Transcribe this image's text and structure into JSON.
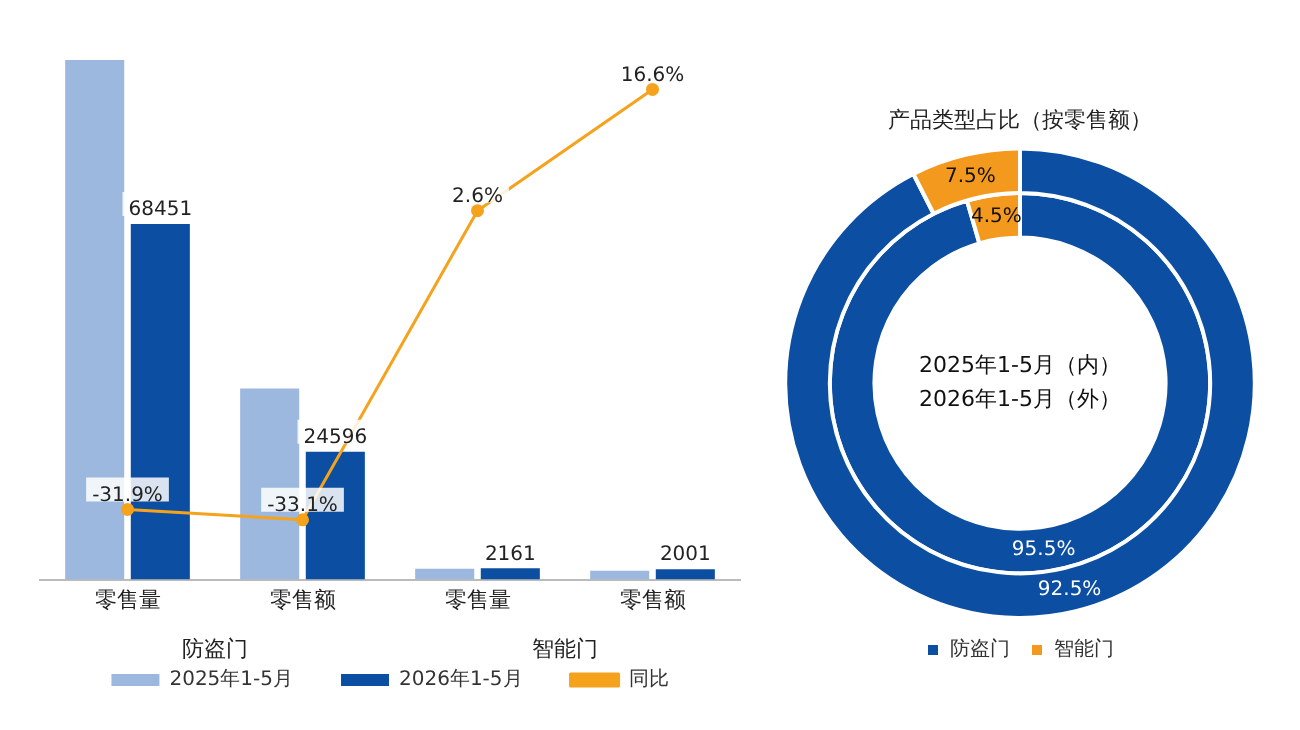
{
  "chart_data": [
    {
      "type": "bar",
      "categories": [
        "零售量",
        "零售额",
        "零售量",
        "零售额"
      ],
      "series": [
        {
          "name": "2025年1-5月",
          "color": "#9db8de",
          "values": [
            100000,
            36800,
            2100,
            1700
          ]
        },
        {
          "name": "2026年1-5月",
          "color": "#0b4ea2",
          "values": [
            68451,
            24596,
            2161,
            2001
          ],
          "value_labels": [
            "68451",
            "24596",
            "2161",
            "2001"
          ]
        },
        {
          "name": "同比",
          "type": "line",
          "axis": "y2",
          "color": "#f5a21c",
          "values": [
            -31.9,
            -33.1,
            2.6,
            16.6
          ],
          "value_labels": [
            "-31.9%",
            "-33.1%",
            "2.6%",
            "16.6%"
          ]
        }
      ],
      "annotations": [
        "防盗门",
        "智能门"
      ],
      "legend": "bottom",
      "marker": "circle",
      "grid": false
    },
    {
      "type": "donut",
      "title": "产品类型占比（按零售额）",
      "categories": [
        "防盗门",
        "智能门"
      ],
      "colors": [
        "#0b4ea2",
        "#f39a1e"
      ],
      "series": [
        {
          "values": [
            95.5,
            4.5
          ],
          "value_labels": [
            "95.5%",
            "4.5%"
          ]
        },
        {
          "values": [
            92.5,
            7.5
          ],
          "value_labels": [
            "92.5%",
            "7.5%"
          ]
        }
      ],
      "annotations": [
        "2025年1-5月（内）",
        "2026年1-5月（外）"
      ],
      "legend": "bottom"
    }
  ]
}
